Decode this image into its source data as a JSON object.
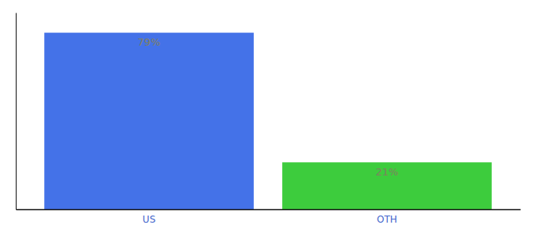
{
  "chart_data": {
    "type": "bar",
    "categories": [
      "US",
      "OTH"
    ],
    "values": [
      79,
      21
    ],
    "value_labels": [
      "79%",
      "21%"
    ],
    "colors": [
      "#4472e8",
      "#3dcc3d"
    ],
    "ylim": [
      0,
      88
    ],
    "data_labels": true,
    "tick_labels": "x",
    "grid": false
  }
}
